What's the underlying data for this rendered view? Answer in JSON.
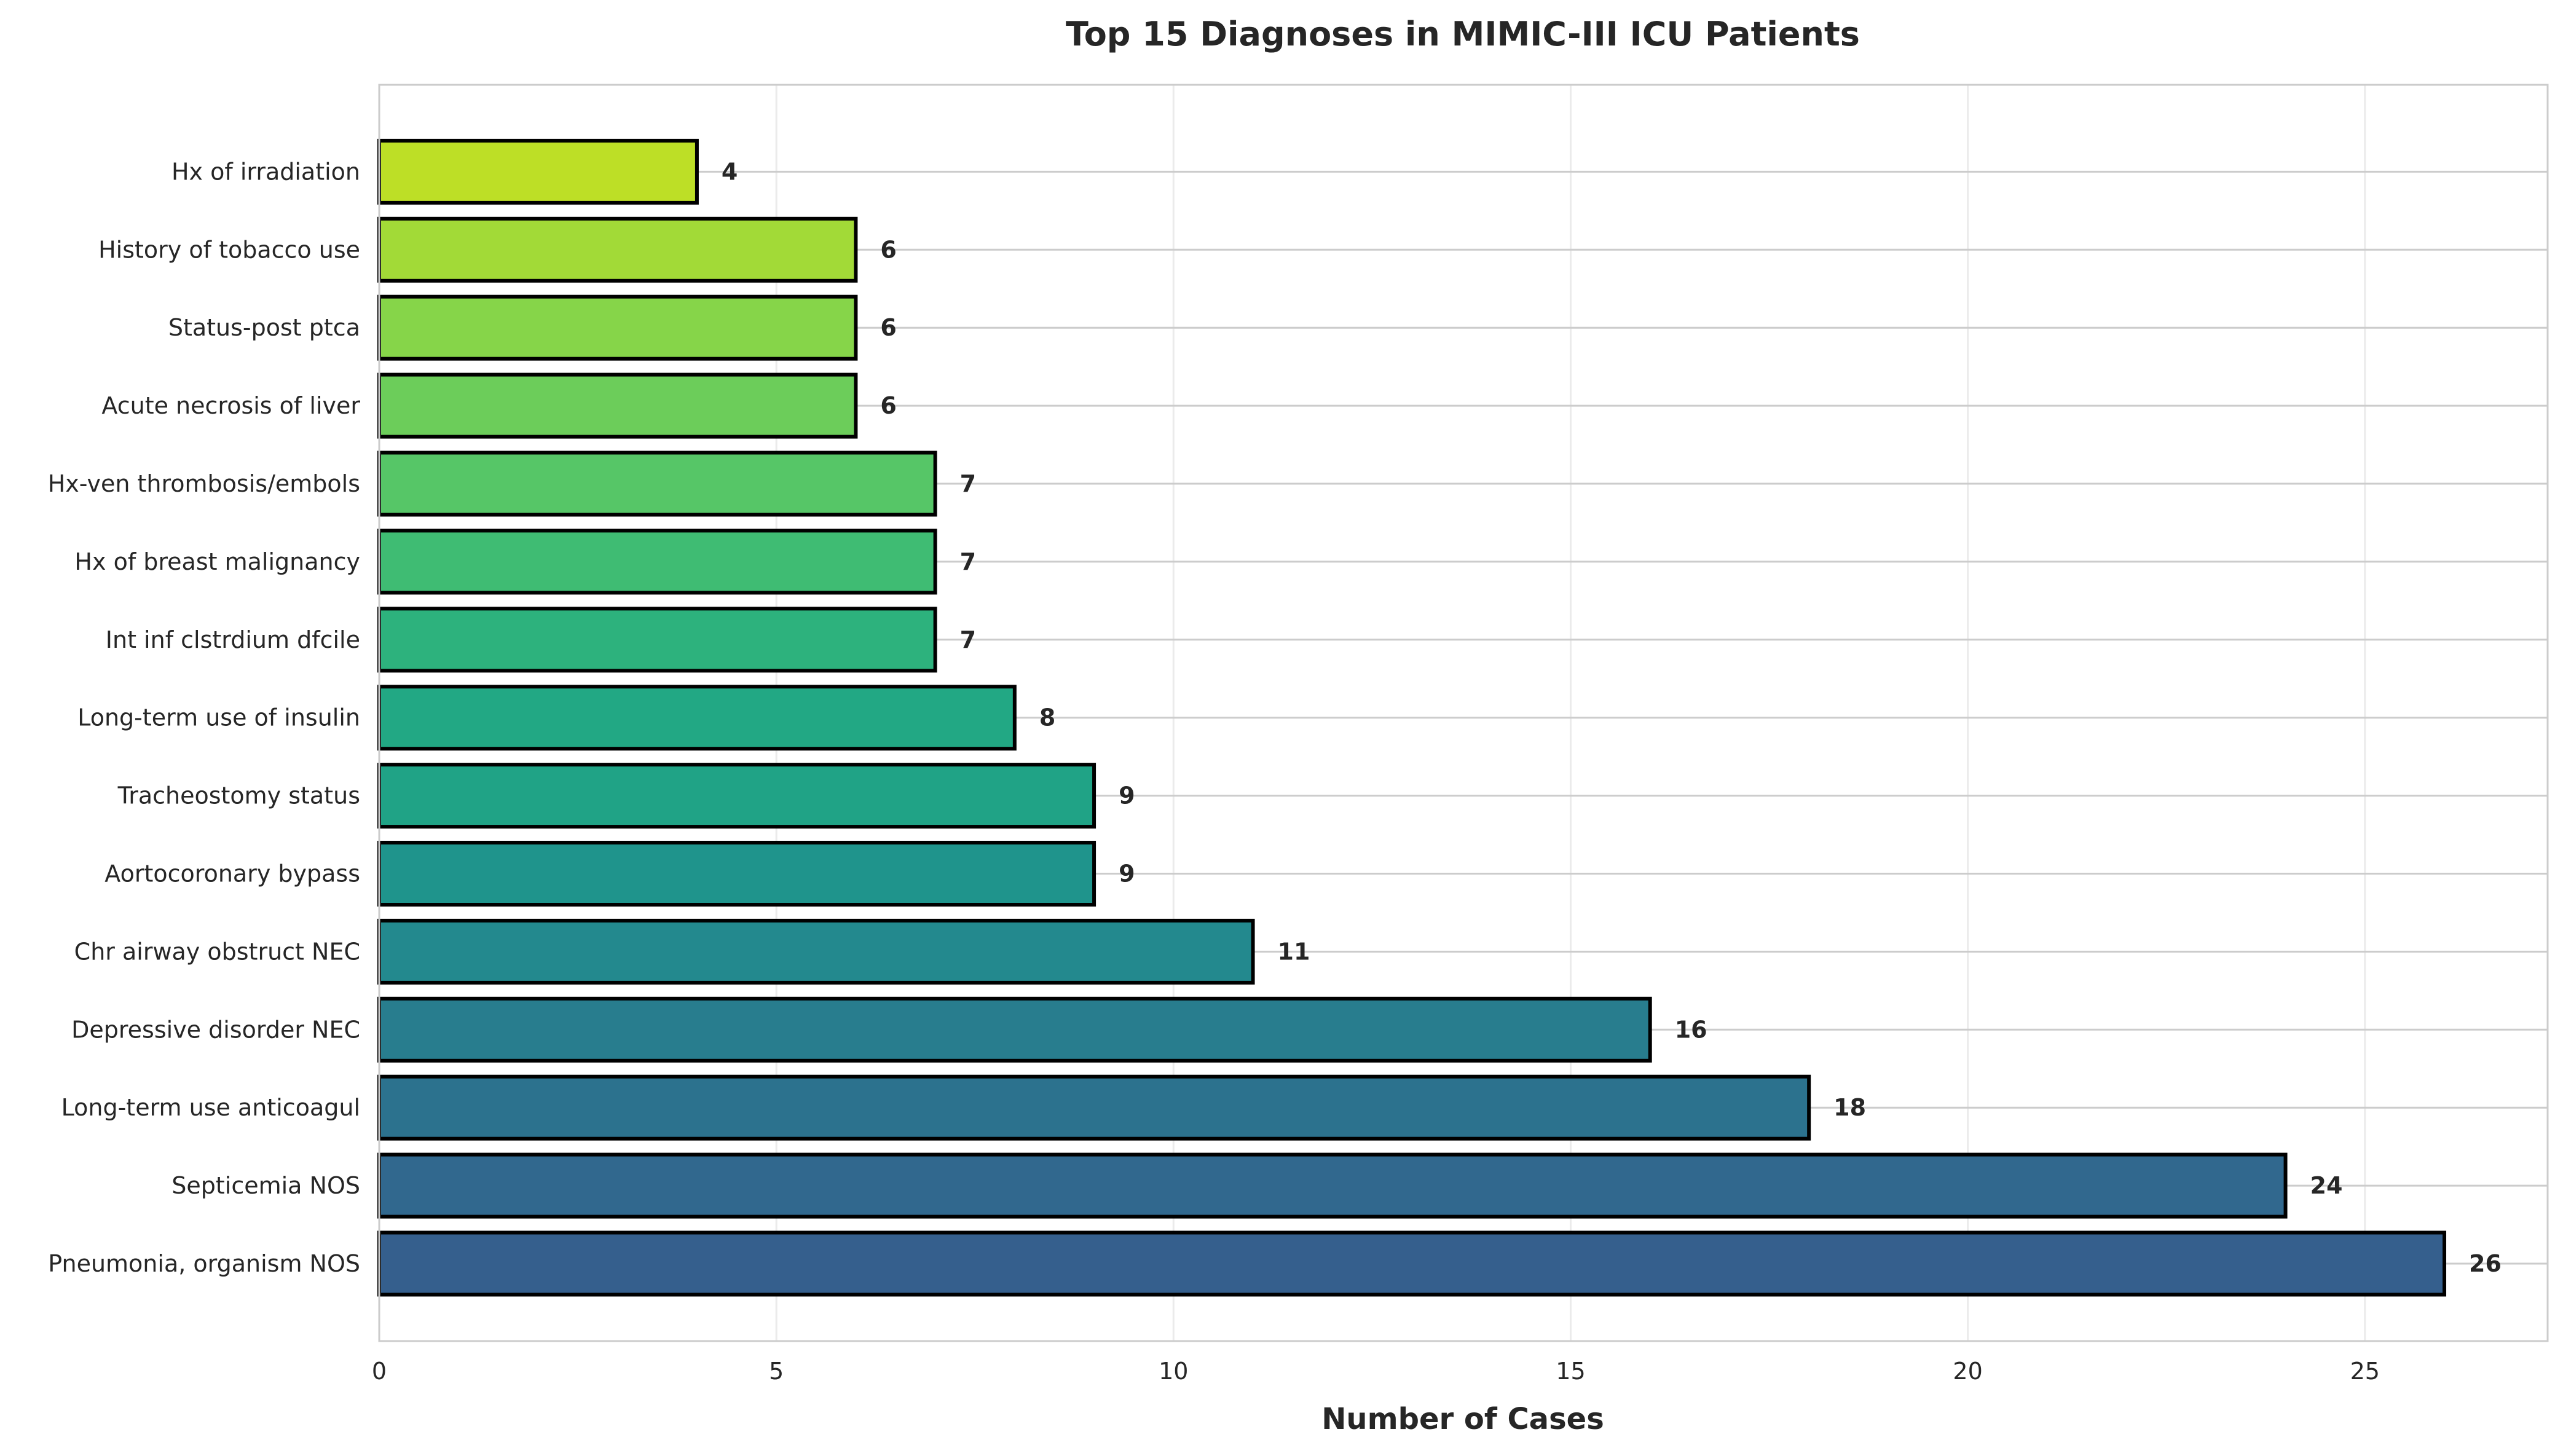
{
  "chart_data": {
    "type": "bar",
    "orientation": "horizontal",
    "title": "Top 15 Diagnoses in MIMIC-III ICU Patients",
    "xlabel": "Number of Cases",
    "ylabel": "",
    "xlim": [
      0,
      27.3
    ],
    "xticks": [
      0,
      5,
      10,
      15,
      20,
      25
    ],
    "grid": true,
    "categories": [
      "Pneumonia, organism NOS",
      "Septicemia NOS",
      "Long-term use anticoagul",
      "Depressive disorder NEC",
      "Chr airway obstruct NEC",
      "Aortocoronary bypass",
      "Tracheostomy status",
      "Long-term use of insulin",
      "Int inf clstrdium dfcile",
      "Hx of breast malignancy",
      "Hx-ven thrombosis/embols",
      "Acute necrosis of liver",
      "Status-post ptca",
      "History of tobacco use",
      "Hx of irradiation"
    ],
    "values": [
      26,
      24,
      18,
      16,
      11,
      9,
      9,
      8,
      7,
      7,
      7,
      6,
      6,
      6,
      4
    ],
    "colors": [
      "#355f8d",
      "#31688e",
      "#2c728e",
      "#287d8e",
      "#23898e",
      "#1f948c",
      "#20a386",
      "#22a884",
      "#2db27d",
      "#3fbc73",
      "#56c667",
      "#6ccd5a",
      "#86d549",
      "#a2da37",
      "#bddf26"
    ]
  }
}
